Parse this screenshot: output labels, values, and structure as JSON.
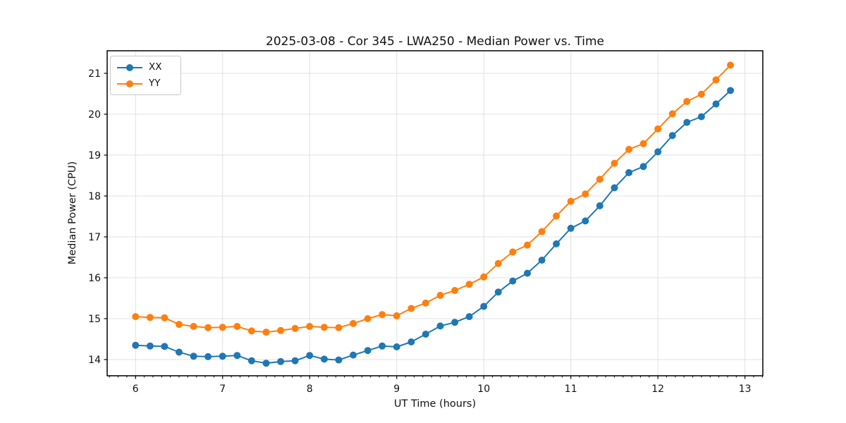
{
  "chart_data": {
    "type": "line",
    "title": "2025-03-08 - Cor 345 - LWA250 - Median Power vs. Time",
    "xlabel": "UT Time (hours)",
    "ylabel": "Median Power (CPU)",
    "x": [
      6.0,
      6.167,
      6.333,
      6.5,
      6.667,
      6.833,
      7.0,
      7.167,
      7.333,
      7.5,
      7.667,
      7.833,
      8.0,
      8.167,
      8.333,
      8.5,
      8.667,
      8.833,
      9.0,
      9.167,
      9.333,
      9.5,
      9.667,
      9.833,
      10.0,
      10.167,
      10.333,
      10.5,
      10.667,
      10.833,
      11.0,
      11.167,
      11.333,
      11.5,
      11.667,
      11.833,
      12.0,
      12.167,
      12.333,
      12.5,
      12.667,
      12.833
    ],
    "series": [
      {
        "name": "XX",
        "color": "#1f77b4",
        "values": [
          14.35,
          14.33,
          14.32,
          14.18,
          14.08,
          14.07,
          14.08,
          14.1,
          13.97,
          13.91,
          13.95,
          13.97,
          14.1,
          14.01,
          13.99,
          14.11,
          14.22,
          14.33,
          14.31,
          14.43,
          14.62,
          14.82,
          14.91,
          15.05,
          15.3,
          15.65,
          15.92,
          16.11,
          16.43,
          16.83,
          17.21,
          17.39,
          17.76,
          18.2,
          18.57,
          18.72,
          19.08,
          19.48,
          19.8,
          19.94,
          20.25,
          20.58
        ]
      },
      {
        "name": "YY",
        "color": "#ff7f0e",
        "values": [
          15.05,
          15.03,
          15.02,
          14.86,
          14.81,
          14.78,
          14.79,
          14.81,
          14.7,
          14.67,
          14.71,
          14.76,
          14.81,
          14.79,
          14.78,
          14.88,
          15.0,
          15.1,
          15.07,
          15.25,
          15.38,
          15.57,
          15.69,
          15.84,
          16.02,
          16.35,
          16.63,
          16.8,
          17.13,
          17.51,
          17.87,
          18.05,
          18.41,
          18.8,
          19.14,
          19.28,
          19.64,
          20.01,
          20.31,
          20.49,
          20.84,
          21.2
        ]
      }
    ],
    "xticks": [
      6,
      7,
      8,
      9,
      10,
      11,
      12,
      13
    ],
    "yticks": [
      14,
      15,
      16,
      17,
      18,
      19,
      20,
      21
    ],
    "xlim": [
      5.674,
      13.205
    ],
    "ylim": [
      13.603,
      21.552
    ],
    "x_minor_tick_step": 0.1,
    "grid": true,
    "legend_position": "upper left",
    "marker": "o",
    "colors": {
      "grid": "#e0e0e0",
      "spine": "#000000",
      "text": "#111111",
      "background": "#ffffff"
    }
  }
}
